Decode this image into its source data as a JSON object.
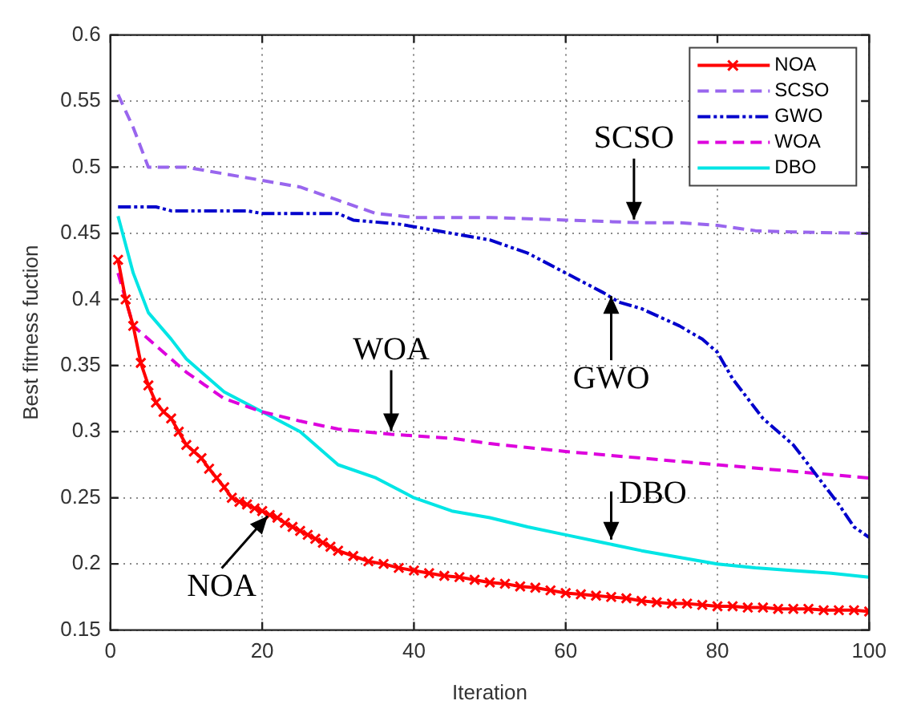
{
  "chart_data": {
    "type": "line",
    "xlabel": "Iteration",
    "ylabel": "Best fitness fuction",
    "xlim": [
      0,
      100
    ],
    "xticks": [
      0,
      20,
      40,
      60,
      80,
      100
    ],
    "ylim": [
      0.15,
      0.6
    ],
    "yticks": [
      0.15,
      0.2,
      0.25,
      0.3,
      0.35,
      0.4,
      0.45,
      0.5,
      0.55,
      0.6
    ],
    "grid": true,
    "legend": "top right",
    "series": [
      {
        "name": "NOA",
        "color": "#ff0000",
        "marker": "cross",
        "line_style": "solid",
        "x": [
          1,
          2,
          3,
          4,
          5,
          6,
          7,
          8,
          9,
          10,
          11,
          12,
          13,
          14,
          15,
          16,
          17,
          18,
          19,
          20,
          21,
          22,
          23,
          24,
          25,
          26,
          27,
          28,
          29,
          30,
          32,
          34,
          36,
          38,
          40,
          42,
          44,
          46,
          48,
          50,
          52,
          54,
          56,
          58,
          60,
          62,
          64,
          66,
          68,
          70,
          72,
          74,
          76,
          78,
          80,
          82,
          84,
          86,
          88,
          90,
          92,
          94,
          96,
          98,
          100
        ],
        "values": [
          0.43,
          0.4,
          0.38,
          0.352,
          0.335,
          0.322,
          0.315,
          0.31,
          0.3,
          0.29,
          0.285,
          0.28,
          0.272,
          0.265,
          0.258,
          0.25,
          0.247,
          0.245,
          0.242,
          0.24,
          0.237,
          0.235,
          0.231,
          0.228,
          0.225,
          0.222,
          0.219,
          0.216,
          0.213,
          0.21,
          0.206,
          0.202,
          0.2,
          0.197,
          0.195,
          0.193,
          0.191,
          0.19,
          0.188,
          0.186,
          0.185,
          0.183,
          0.182,
          0.18,
          0.178,
          0.177,
          0.176,
          0.175,
          0.174,
          0.172,
          0.171,
          0.17,
          0.17,
          0.169,
          0.168,
          0.168,
          0.167,
          0.167,
          0.166,
          0.166,
          0.166,
          0.165,
          0.165,
          0.165,
          0.164
        ]
      },
      {
        "name": "SCSO",
        "color": "#9966ee",
        "marker": "none",
        "line_style": "dashed",
        "x": [
          1,
          3,
          5,
          10,
          15,
          20,
          25,
          30,
          35,
          40,
          50,
          60,
          70,
          75,
          80,
          85,
          90,
          100
        ],
        "values": [
          0.555,
          0.53,
          0.5,
          0.5,
          0.495,
          0.49,
          0.485,
          0.475,
          0.465,
          0.462,
          0.462,
          0.46,
          0.458,
          0.458,
          0.456,
          0.452,
          0.451,
          0.45
        ]
      },
      {
        "name": "GWO",
        "color": "#0000cc",
        "marker": "none",
        "line_style": "dashdotdot",
        "x": [
          1,
          6,
          8,
          18,
          20,
          30,
          32,
          38,
          40,
          45,
          50,
          55,
          60,
          65,
          67,
          70,
          75,
          78,
          80,
          82,
          84,
          86,
          88,
          90,
          92,
          94,
          96,
          98,
          100
        ],
        "values": [
          0.47,
          0.47,
          0.467,
          0.467,
          0.465,
          0.465,
          0.46,
          0.457,
          0.455,
          0.45,
          0.445,
          0.435,
          0.42,
          0.405,
          0.398,
          0.393,
          0.38,
          0.37,
          0.36,
          0.34,
          0.325,
          0.31,
          0.3,
          0.29,
          0.275,
          0.26,
          0.245,
          0.228,
          0.22
        ]
      },
      {
        "name": "WOA",
        "color": "#dd00dd",
        "marker": "none",
        "line_style": "dashed",
        "x": [
          1,
          3,
          5,
          8,
          10,
          15,
          20,
          25,
          30,
          37,
          45,
          50,
          60,
          70,
          80,
          90,
          100
        ],
        "values": [
          0.42,
          0.38,
          0.37,
          0.355,
          0.345,
          0.325,
          0.315,
          0.308,
          0.302,
          0.298,
          0.295,
          0.291,
          0.285,
          0.28,
          0.275,
          0.27,
          0.265
        ]
      },
      {
        "name": "DBO",
        "color": "#00e5e5",
        "marker": "none",
        "line_style": "solid",
        "x": [
          1,
          3,
          5,
          8,
          10,
          15,
          20,
          25,
          30,
          35,
          40,
          45,
          50,
          55,
          60,
          65,
          70,
          75,
          80,
          85,
          90,
          95,
          100
        ],
        "values": [
          0.463,
          0.42,
          0.39,
          0.37,
          0.355,
          0.33,
          0.315,
          0.3,
          0.275,
          0.265,
          0.25,
          0.24,
          0.235,
          0.228,
          0.222,
          0.216,
          0.21,
          0.205,
          0.2,
          0.197,
          0.195,
          0.193,
          0.19
        ]
      }
    ],
    "annotations": [
      {
        "text": "SCSO",
        "x": 69,
        "y": 0.458
      },
      {
        "text": "GWO",
        "x": 66,
        "y": 0.405
      },
      {
        "text": "WOA",
        "x": 37,
        "y": 0.298
      },
      {
        "text": "DBO",
        "x": 66,
        "y": 0.216
      },
      {
        "text": "NOA",
        "x": 21,
        "y": 0.238
      }
    ]
  }
}
